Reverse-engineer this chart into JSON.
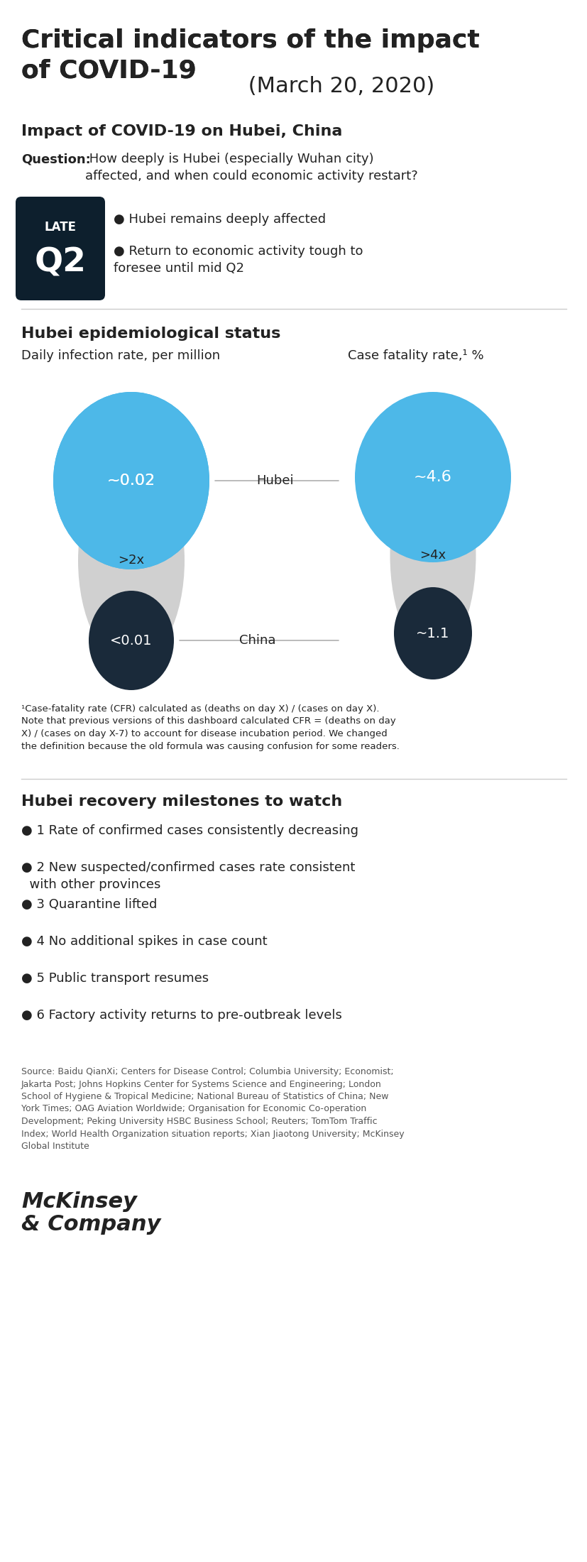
{
  "title_bold": "Critical indicators of the impact\nof COVID-19",
  "title_normal": " (March 20, 2020)",
  "section1_title": "Impact of COVID-19 on Hubei, China",
  "question_bold": "Question:",
  "question_text": " How deeply is Hubei (especially Wuhan city)\naffected, and when could economic activity restart?",
  "box_label_top": "LATE",
  "box_label_bottom": "Q2",
  "box_color": "#0d1f2d",
  "bullet1": "Hubei remains deeply affected",
  "bullet2": "Return to economic activity tough to\nforesee until mid Q2",
  "section2_title": "Hubei epidemiological status",
  "col1_label": "Daily infection rate, per million",
  "col2_label": "Case fatality rate,¹ %",
  "hubei_label": "Hubei",
  "china_label": "China",
  "hubei_infection": "~0.02",
  "hubei_fatality": "~4.6",
  "china_infection": "<0.01",
  "china_fatality": "~1.1",
  "ratio_infection": ">2x",
  "ratio_fatality": ">4x",
  "bubble_color_blue": "#4db8e8",
  "bubble_color_dark": "#1a2a3a",
  "bubble_color_gray": "#d0d0d0",
  "footnote": "¹Case-fatality rate (CFR) calculated as (deaths on day X) / (cases on day X).\nNote that previous versions of this dashboard calculated CFR = (deaths on day\nX) / (cases on day X-7) to account for disease incubation period. We changed\nthe definition because the old formula was causing confusion for some readers.",
  "section3_title": "Hubei recovery milestones to watch",
  "milestones": [
    "● 1 Rate of confirmed cases consistently decreasing",
    "● 2 New suspected/confirmed cases rate consistent\n  with other provinces",
    "● 3 Quarantine lifted",
    "● 4 No additional spikes in case count",
    "● 5 Public transport resumes",
    "● 6 Factory activity returns to pre-outbreak levels"
  ],
  "source_text": "Source: Baidu QianXi; Centers for Disease Control; Columbia University; Economist;\nJakarta Post; Johns Hopkins Center for Systems Science and Engineering; London\nSchool of Hygiene & Tropical Medicine; National Bureau of Statistics of China; New\nYork Times; OAG Aviation Worldwide; Organisation for Economic Co-operation\nDevelopment; Peking University HSBC Business School; Reuters; TomTom Traffic\nIndex; World Health Organization situation reports; Xian Jiaotong University; McKinsey\nGlobal Institute",
  "mckinsey_line1": "McKinsey",
  "mckinsey_line2": "& Company",
  "bg_color": "#ffffff",
  "text_color": "#222222",
  "gray_color": "#888888",
  "line_color": "#cccccc"
}
